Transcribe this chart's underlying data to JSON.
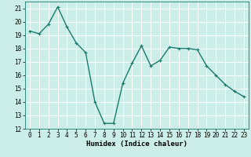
{
  "x": [
    0,
    1,
    2,
    3,
    4,
    5,
    6,
    7,
    8,
    9,
    10,
    11,
    12,
    13,
    14,
    15,
    16,
    17,
    18,
    19,
    20,
    21,
    22,
    23
  ],
  "y": [
    19.3,
    19.1,
    19.8,
    21.1,
    19.6,
    18.4,
    17.7,
    14.0,
    12.4,
    12.4,
    15.4,
    16.9,
    18.2,
    16.7,
    17.1,
    18.1,
    18.0,
    18.0,
    17.9,
    16.7,
    16.0,
    15.3,
    14.8,
    14.4
  ],
  "line_color": "#1a7a6e",
  "marker": "+",
  "marker_size": 3,
  "bg_color": "#cceee8",
  "grid_color": "#ffffff",
  "xlabel": "Humidex (Indice chaleur)",
  "xlim": [
    -0.5,
    23.5
  ],
  "ylim": [
    12,
    21.5
  ],
  "yticks": [
    12,
    13,
    14,
    15,
    16,
    17,
    18,
    19,
    20,
    21
  ],
  "xticks": [
    0,
    1,
    2,
    3,
    4,
    5,
    6,
    7,
    8,
    9,
    10,
    11,
    12,
    13,
    14,
    15,
    16,
    17,
    18,
    19,
    20,
    21,
    22,
    23
  ],
  "tick_fontsize": 5.5,
  "xlabel_fontsize": 6.5,
  "line_width": 1.0
}
